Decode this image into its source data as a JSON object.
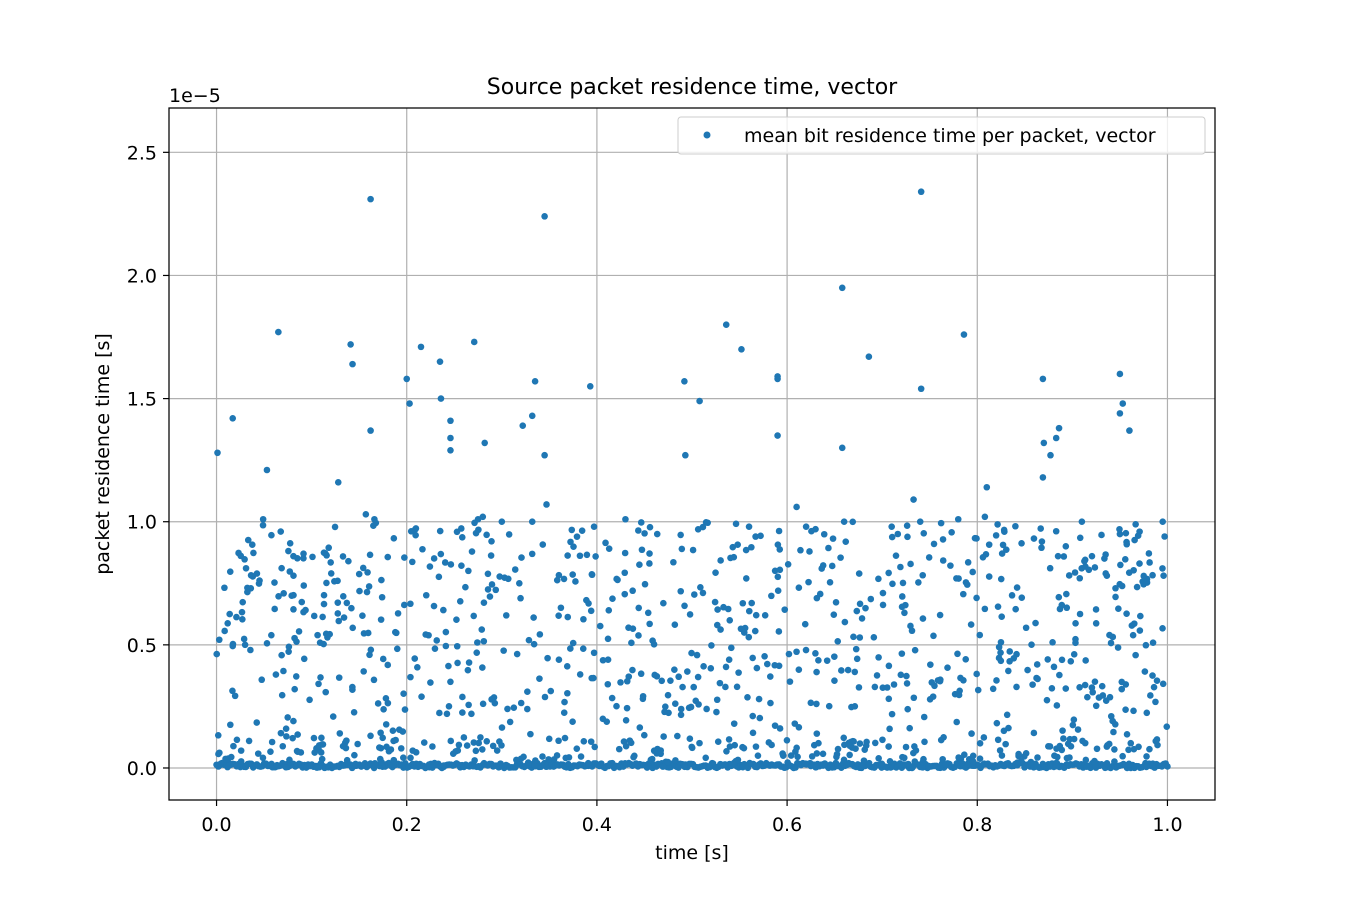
{
  "chart_data": {
    "type": "scatter",
    "title": "Source packet residence time, vector",
    "xlabel": "time [s]",
    "ylabel": "packet residence time [s]",
    "y_offset_label": "1e−5",
    "xlim": [
      -0.05,
      1.05
    ],
    "ylim": [
      -1.3e-06,
      2.68e-05
    ],
    "x_ticks": [
      0.0,
      0.2,
      0.4,
      0.6,
      0.8,
      1.0
    ],
    "x_tick_labels": [
      "0.0",
      "0.2",
      "0.4",
      "0.6",
      "0.8",
      "1.0"
    ],
    "y_ticks": [
      0,
      5e-06,
      1e-05,
      1.5e-05,
      2e-05,
      2.5e-05
    ],
    "y_tick_labels": [
      "0.0",
      "0.5",
      "1.0",
      "1.5",
      "2.0",
      "2.5"
    ],
    "grid": true,
    "legend_position": "upper right",
    "colors": {
      "series": "#1f77b4",
      "grid": "#b0b0b0"
    },
    "series": [
      {
        "name": "mean bit residence time per packet, vector",
        "marker": "point",
        "points": [
          [
            0.001,
            1.28e-05
          ],
          [
            0.017,
            1.42e-05
          ],
          [
            0.053,
            1.21e-05
          ],
          [
            0.065,
            1.77e-05
          ],
          [
            0.128,
            1.16e-05
          ],
          [
            0.141,
            1.72e-05
          ],
          [
            0.143,
            1.64e-05
          ],
          [
            0.162,
            2.31e-05
          ],
          [
            0.162,
            1.37e-05
          ],
          [
            0.2,
            1.58e-05
          ],
          [
            0.203,
            1.48e-05
          ],
          [
            0.215,
            1.71e-05
          ],
          [
            0.235,
            1.65e-05
          ],
          [
            0.236,
            1.5e-05
          ],
          [
            0.246,
            1.41e-05
          ],
          [
            0.246,
            1.34e-05
          ],
          [
            0.246,
            1.29e-05
          ],
          [
            0.271,
            1.73e-05
          ],
          [
            0.282,
            1.32e-05
          ],
          [
            0.322,
            1.39e-05
          ],
          [
            0.332,
            1.43e-05
          ],
          [
            0.335,
            1.57e-05
          ],
          [
            0.345,
            2.24e-05
          ],
          [
            0.345,
            1.27e-05
          ],
          [
            0.347,
            1.07e-05
          ],
          [
            0.393,
            1.55e-05
          ],
          [
            0.492,
            1.57e-05
          ],
          [
            0.493,
            1.27e-05
          ],
          [
            0.508,
            1.49e-05
          ],
          [
            0.536,
            1.8e-05
          ],
          [
            0.552,
            1.7e-05
          ],
          [
            0.59,
            1.59e-05
          ],
          [
            0.59,
            1.58e-05
          ],
          [
            0.59,
            1.35e-05
          ],
          [
            0.61,
            1.06e-05
          ],
          [
            0.658,
            1.95e-05
          ],
          [
            0.658,
            1.3e-05
          ],
          [
            0.686,
            1.67e-05
          ],
          [
            0.733,
            1.09e-05
          ],
          [
            0.741,
            2.34e-05
          ],
          [
            0.741,
            1.54e-05
          ],
          [
            0.786,
            1.76e-05
          ],
          [
            0.81,
            1.14e-05
          ],
          [
            0.869,
            1.58e-05
          ],
          [
            0.87,
            1.32e-05
          ],
          [
            0.869,
            1.18e-05
          ],
          [
            0.877,
            1.27e-05
          ],
          [
            0.883,
            1.34e-05
          ],
          [
            0.886,
            1.38e-05
          ],
          [
            0.95,
            1.6e-05
          ],
          [
            0.95,
            1.44e-05
          ],
          [
            0.953,
            1.48e-05
          ],
          [
            0.96,
            1.37e-05
          ],
          [
            0.157,
            1.03e-05
          ],
          [
            0.166,
            1.01e-05
          ],
          [
            0.049,
            1.01e-05
          ],
          [
            0.275,
            1.01e-05
          ],
          [
            0.28,
            1.02e-05
          ],
          [
            0.332,
            1e-05
          ],
          [
            0.3,
            1e-05
          ],
          [
            0.397,
            9.8e-06
          ],
          [
            0.43,
            1.01e-05
          ],
          [
            0.56,
            9.8e-06
          ],
          [
            0.78,
            1.01e-05
          ],
          [
            0.808,
            1.02e-05
          ],
          [
            0.91,
            1e-05
          ],
          [
            0.995,
            1e-05
          ],
          [
            0.997,
            9.4e-06
          ],
          [
            0.95,
            9.5e-06
          ],
          [
            0.66,
            1e-05
          ],
          [
            0.71,
            9.8e-06
          ],
          [
            0.74,
            1e-05
          ],
          [
            0.62,
            9.8e-06
          ]
        ]
      }
    ]
  }
}
